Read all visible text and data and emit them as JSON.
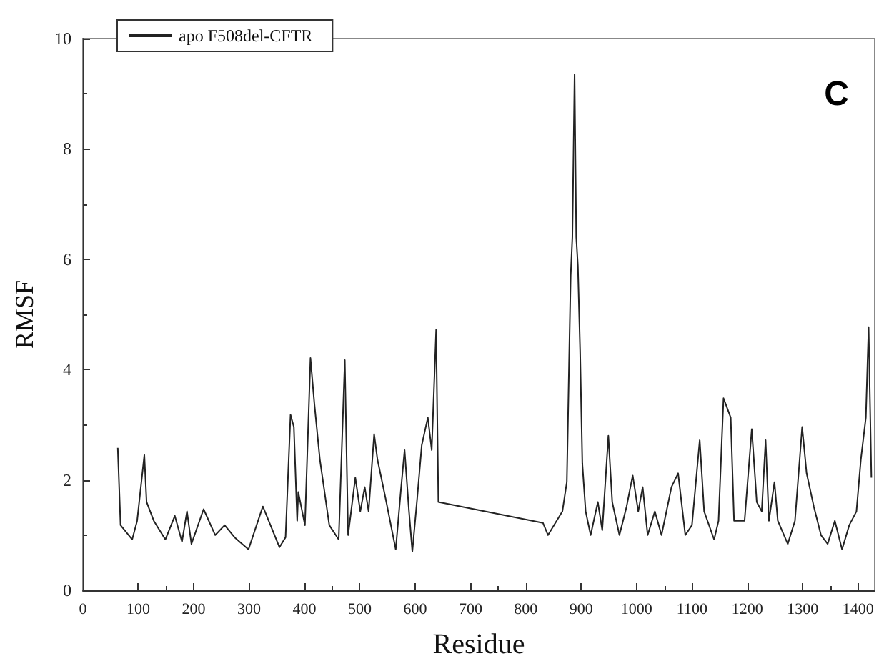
{
  "chart_data": {
    "type": "line",
    "xlabel": "Residue",
    "ylabel": "RMSF",
    "annotations": [
      "C"
    ],
    "legend": "top left",
    "grid": false,
    "marker": "none",
    "line_style": "solid",
    "xlim": [
      0,
      1430
    ],
    "xticks": [
      0,
      100,
      200,
      300,
      400,
      500,
      600,
      700,
      800,
      900,
      1000,
      1100,
      1200,
      1300,
      1400
    ],
    "ylim": [
      0,
      10
    ],
    "yticks": [
      0,
      2,
      4,
      6,
      8,
      10
    ],
    "series": [
      {
        "name": "apo F508del-CFTR",
        "color": "#222222",
        "x": [
          63,
          68,
          89,
          98,
          111,
          115,
          128,
          149,
          166,
          179,
          188,
          196,
          218,
          239,
          256,
          274,
          299,
          325,
          355,
          366,
          375,
          381,
          387,
          389,
          401,
          411,
          418,
          428,
          445,
          462,
          473,
          479,
          492,
          501,
          509,
          516,
          526,
          532,
          548,
          565,
          574,
          581,
          589,
          595,
          604,
          612,
          623,
          630,
          638,
          642,
          831,
          840,
          866,
          874,
          881,
          884,
          888,
          891,
          894,
          898,
          902,
          908,
          917,
          930,
          938,
          949,
          956,
          969,
          982,
          993,
          1003,
          1011,
          1020,
          1033,
          1045,
          1063,
          1075,
          1088,
          1100,
          1114,
          1122,
          1140,
          1148,
          1157,
          1170,
          1176,
          1195,
          1208,
          1217,
          1226,
          1233,
          1239,
          1249,
          1255,
          1273,
          1286,
          1299,
          1307,
          1320,
          1333,
          1345,
          1358,
          1371,
          1384,
          1397,
          1405,
          1414,
          1419,
          1424
        ],
        "values": [
          2.58,
          1.18,
          0.92,
          1.26,
          2.45,
          1.6,
          1.26,
          0.92,
          1.35,
          0.88,
          1.43,
          0.84,
          1.47,
          1.0,
          1.18,
          0.96,
          0.74,
          1.52,
          0.78,
          0.96,
          3.18,
          2.96,
          1.26,
          1.78,
          1.18,
          4.21,
          3.39,
          2.37,
          1.18,
          0.92,
          4.17,
          1.0,
          2.04,
          1.43,
          1.87,
          1.43,
          2.83,
          2.37,
          1.6,
          0.74,
          1.78,
          2.54,
          1.43,
          0.7,
          1.69,
          2.63,
          3.13,
          2.54,
          4.72,
          1.6,
          1.22,
          1.0,
          1.43,
          1.96,
          5.7,
          6.4,
          9.35,
          6.4,
          5.88,
          4.35,
          2.3,
          1.43,
          1.0,
          1.6,
          1.09,
          2.8,
          1.6,
          1.0,
          1.52,
          2.08,
          1.43,
          1.87,
          1.0,
          1.43,
          1.0,
          1.87,
          2.12,
          1.0,
          1.18,
          2.72,
          1.43,
          0.92,
          1.26,
          3.48,
          3.13,
          1.26,
          1.26,
          2.92,
          1.6,
          1.43,
          2.72,
          1.26,
          1.96,
          1.26,
          0.84,
          1.26,
          2.96,
          2.12,
          1.52,
          1.0,
          0.84,
          1.26,
          0.74,
          1.18,
          1.43,
          2.37,
          3.13,
          4.77,
          2.04
        ]
      }
    ]
  }
}
